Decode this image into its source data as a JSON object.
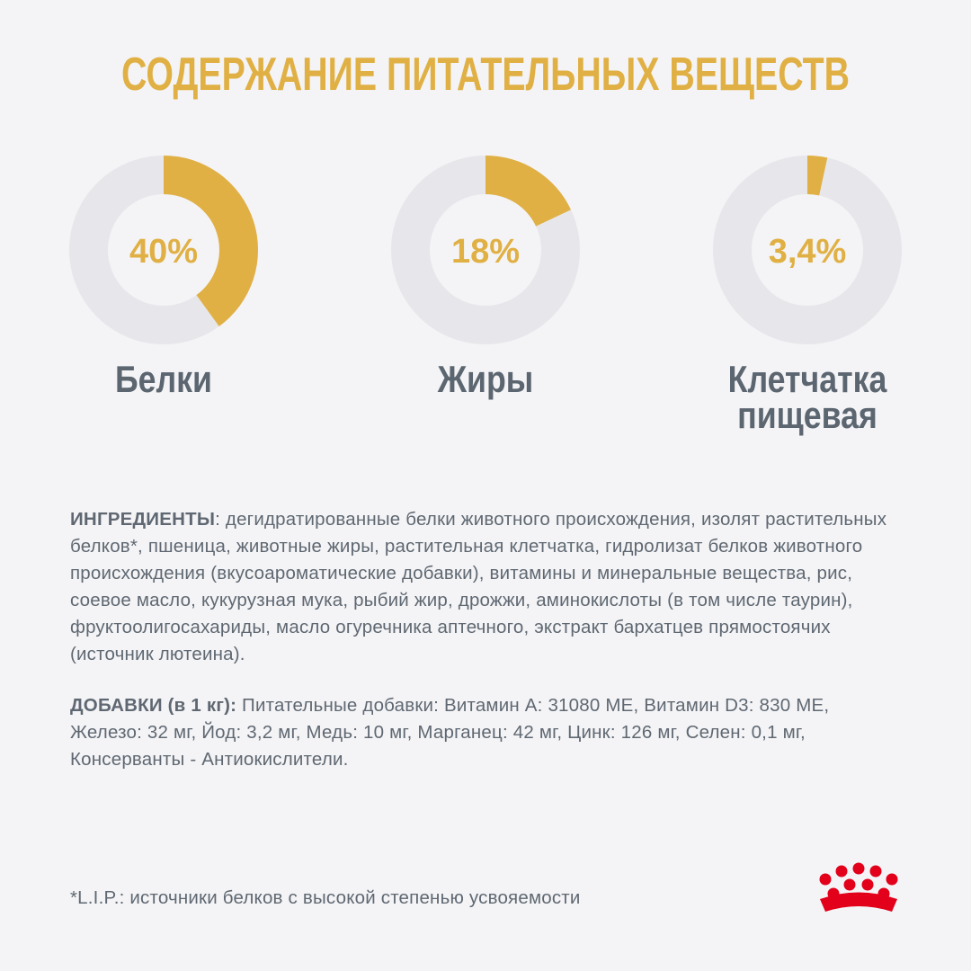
{
  "title": "СОДЕРЖАНИЕ ПИТАТЕЛЬНЫХ ВЕЩЕСТВ",
  "chart_data": [
    {
      "type": "donut",
      "title": "Белки",
      "values": [
        40
      ],
      "value_labels": [
        "40%"
      ],
      "color": "#e0b044",
      "track_color": "#e7e7eb"
    },
    {
      "type": "donut",
      "title": "Жиры",
      "values": [
        18
      ],
      "value_labels": [
        "18%"
      ],
      "color": "#e0b044",
      "track_color": "#e7e7eb"
    },
    {
      "type": "donut",
      "title": "Клетчатка пищевая",
      "values": [
        3.4
      ],
      "value_labels": [
        "3,4%"
      ],
      "color": "#e0b044",
      "track_color": "#e7e7eb"
    }
  ],
  "ingredients": {
    "label": "ИНГРЕДИЕНТЫ",
    "text": ": дегидратированные белки животного происхождения, изолят растительных белков*, пшеница, животные жиры, растительная клетчатка, гидролизат белков животного происхождения (вкусоароматические добавки), витамины и минеральные вещества, рис, соевое масло, кукурузная мука, рыбий жир, дрожжи, аминокислоты (в том числе таурин), фруктоолигосахариды, масло огуречника аптечного, экстракт бархатцев прямостоячих (источник лютеина)."
  },
  "additives": {
    "label": "ДОБАВКИ (в 1 кг):",
    "text": " Питательные добавки: Витамин A:  31080 МЕ, Витамин D3: 830 МЕ, Железо: 32 мг, Йод: 3,2 мг, Медь: 10 мг, Марганец: 42 мг, Цинк: 126 мг, Селен: 0,1 мг, Консерванты - Антиокислители."
  },
  "footnote": "*L.I.P.: источники белков с высокой степенью усвояемости"
}
